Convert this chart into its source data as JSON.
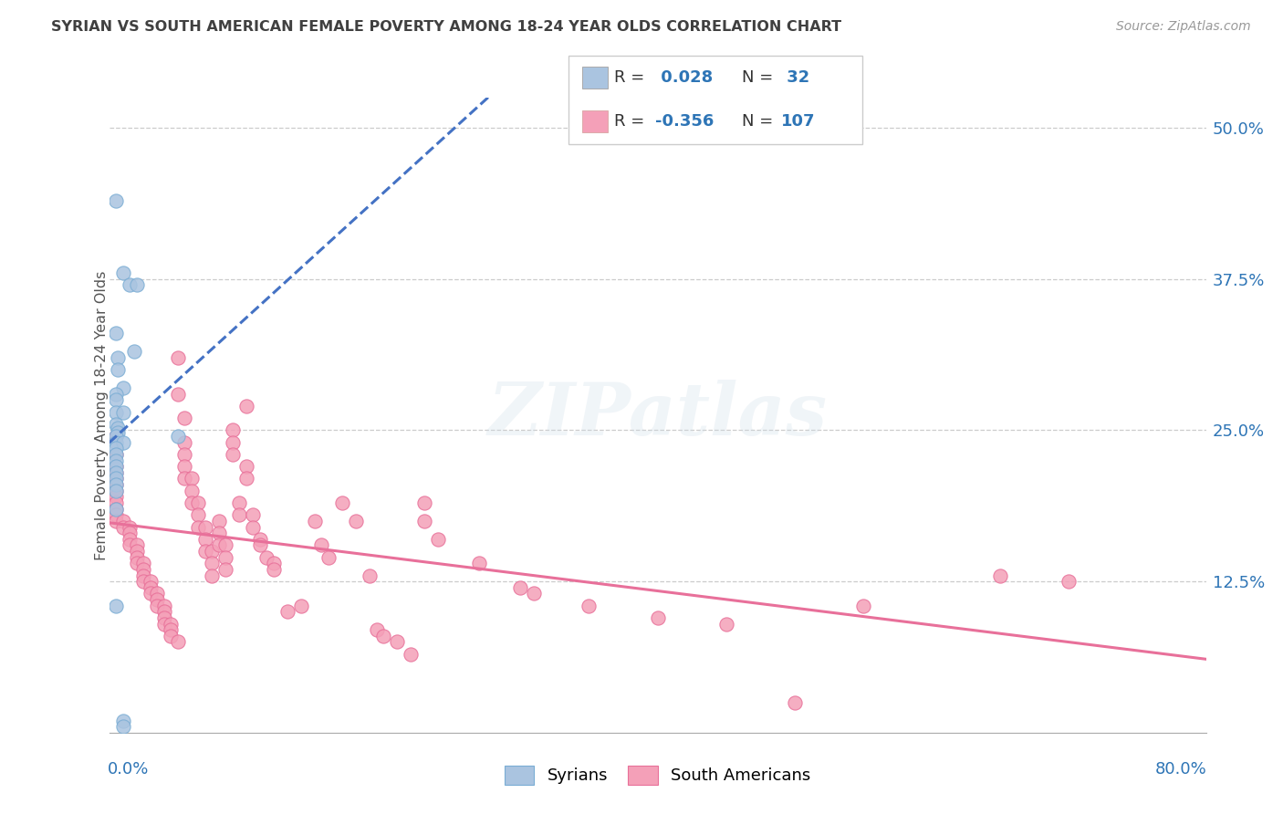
{
  "title": "SYRIAN VS SOUTH AMERICAN FEMALE POVERTY AMONG 18-24 YEAR OLDS CORRELATION CHART",
  "source": "Source: ZipAtlas.com",
  "ylabel": "Female Poverty Among 18-24 Year Olds",
  "ytick_vals": [
    0.0,
    0.125,
    0.25,
    0.375,
    0.5
  ],
  "ytick_labels": [
    "",
    "12.5%",
    "25.0%",
    "37.5%",
    "50.0%"
  ],
  "xmin": 0.0,
  "xmax": 0.8,
  "ymin": 0.0,
  "ymax": 0.525,
  "syrian_R": "0.028",
  "syrian_N": "32",
  "south_american_R": "-0.356",
  "south_american_N": "107",
  "syrian_dot_color": "#aac4e0",
  "syrian_edge_color": "#7aadd4",
  "south_american_dot_color": "#f4a0b8",
  "south_american_edge_color": "#e87099",
  "syrian_line_color": "#4472c4",
  "south_american_line_color": "#e8709a",
  "R_text_color": "#2e75b6",
  "N_text_color": "#2e75b6",
  "watermark": "ZIPatlas",
  "bg": "#ffffff",
  "grid_color": "#cccccc",
  "title_color": "#404040",
  "source_color": "#999999",
  "ylabel_color": "#555555",
  "axis_label_color": "#2e75b6",
  "syrian_points": [
    [
      0.005,
      0.44
    ],
    [
      0.01,
      0.38
    ],
    [
      0.015,
      0.37
    ],
    [
      0.02,
      0.37
    ],
    [
      0.005,
      0.33
    ],
    [
      0.018,
      0.315
    ],
    [
      0.006,
      0.31
    ],
    [
      0.006,
      0.3
    ],
    [
      0.01,
      0.285
    ],
    [
      0.005,
      0.28
    ],
    [
      0.005,
      0.275
    ],
    [
      0.005,
      0.265
    ],
    [
      0.01,
      0.265
    ],
    [
      0.005,
      0.255
    ],
    [
      0.006,
      0.252
    ],
    [
      0.006,
      0.248
    ],
    [
      0.005,
      0.245
    ],
    [
      0.005,
      0.24
    ],
    [
      0.01,
      0.24
    ],
    [
      0.005,
      0.235
    ],
    [
      0.005,
      0.23
    ],
    [
      0.005,
      0.225
    ],
    [
      0.05,
      0.245
    ],
    [
      0.005,
      0.22
    ],
    [
      0.005,
      0.215
    ],
    [
      0.005,
      0.21
    ],
    [
      0.005,
      0.205
    ],
    [
      0.005,
      0.2
    ],
    [
      0.005,
      0.185
    ],
    [
      0.005,
      0.105
    ],
    [
      0.01,
      0.01
    ],
    [
      0.01,
      0.005
    ]
  ],
  "south_american_points": [
    [
      0.005,
      0.245
    ],
    [
      0.005,
      0.23
    ],
    [
      0.005,
      0.22
    ],
    [
      0.005,
      0.215
    ],
    [
      0.005,
      0.21
    ],
    [
      0.005,
      0.205
    ],
    [
      0.005,
      0.2
    ],
    [
      0.005,
      0.195
    ],
    [
      0.005,
      0.19
    ],
    [
      0.005,
      0.185
    ],
    [
      0.005,
      0.18
    ],
    [
      0.005,
      0.175
    ],
    [
      0.01,
      0.175
    ],
    [
      0.01,
      0.17
    ],
    [
      0.015,
      0.17
    ],
    [
      0.015,
      0.165
    ],
    [
      0.015,
      0.16
    ],
    [
      0.015,
      0.155
    ],
    [
      0.02,
      0.155
    ],
    [
      0.02,
      0.15
    ],
    [
      0.02,
      0.145
    ],
    [
      0.02,
      0.14
    ],
    [
      0.025,
      0.14
    ],
    [
      0.025,
      0.135
    ],
    [
      0.025,
      0.13
    ],
    [
      0.025,
      0.125
    ],
    [
      0.03,
      0.125
    ],
    [
      0.03,
      0.12
    ],
    [
      0.03,
      0.115
    ],
    [
      0.035,
      0.115
    ],
    [
      0.035,
      0.11
    ],
    [
      0.035,
      0.105
    ],
    [
      0.04,
      0.105
    ],
    [
      0.04,
      0.1
    ],
    [
      0.04,
      0.095
    ],
    [
      0.04,
      0.09
    ],
    [
      0.045,
      0.09
    ],
    [
      0.045,
      0.085
    ],
    [
      0.045,
      0.08
    ],
    [
      0.05,
      0.075
    ],
    [
      0.05,
      0.31
    ],
    [
      0.05,
      0.28
    ],
    [
      0.055,
      0.26
    ],
    [
      0.055,
      0.24
    ],
    [
      0.055,
      0.23
    ],
    [
      0.055,
      0.22
    ],
    [
      0.055,
      0.21
    ],
    [
      0.06,
      0.21
    ],
    [
      0.06,
      0.2
    ],
    [
      0.06,
      0.19
    ],
    [
      0.065,
      0.19
    ],
    [
      0.065,
      0.18
    ],
    [
      0.065,
      0.17
    ],
    [
      0.07,
      0.17
    ],
    [
      0.07,
      0.16
    ],
    [
      0.07,
      0.15
    ],
    [
      0.075,
      0.15
    ],
    [
      0.075,
      0.14
    ],
    [
      0.075,
      0.13
    ],
    [
      0.08,
      0.175
    ],
    [
      0.08,
      0.165
    ],
    [
      0.08,
      0.155
    ],
    [
      0.085,
      0.155
    ],
    [
      0.085,
      0.145
    ],
    [
      0.085,
      0.135
    ],
    [
      0.09,
      0.25
    ],
    [
      0.09,
      0.24
    ],
    [
      0.09,
      0.23
    ],
    [
      0.095,
      0.19
    ],
    [
      0.095,
      0.18
    ],
    [
      0.1,
      0.27
    ],
    [
      0.1,
      0.22
    ],
    [
      0.1,
      0.21
    ],
    [
      0.105,
      0.18
    ],
    [
      0.105,
      0.17
    ],
    [
      0.11,
      0.16
    ],
    [
      0.11,
      0.155
    ],
    [
      0.115,
      0.145
    ],
    [
      0.12,
      0.14
    ],
    [
      0.12,
      0.135
    ],
    [
      0.13,
      0.1
    ],
    [
      0.14,
      0.105
    ],
    [
      0.15,
      0.175
    ],
    [
      0.155,
      0.155
    ],
    [
      0.16,
      0.145
    ],
    [
      0.17,
      0.19
    ],
    [
      0.18,
      0.175
    ],
    [
      0.19,
      0.13
    ],
    [
      0.195,
      0.085
    ],
    [
      0.2,
      0.08
    ],
    [
      0.21,
      0.075
    ],
    [
      0.22,
      0.065
    ],
    [
      0.23,
      0.19
    ],
    [
      0.23,
      0.175
    ],
    [
      0.24,
      0.16
    ],
    [
      0.27,
      0.14
    ],
    [
      0.3,
      0.12
    ],
    [
      0.31,
      0.115
    ],
    [
      0.35,
      0.105
    ],
    [
      0.4,
      0.095
    ],
    [
      0.45,
      0.09
    ],
    [
      0.5,
      0.025
    ],
    [
      0.55,
      0.105
    ],
    [
      0.65,
      0.13
    ],
    [
      0.7,
      0.125
    ]
  ]
}
